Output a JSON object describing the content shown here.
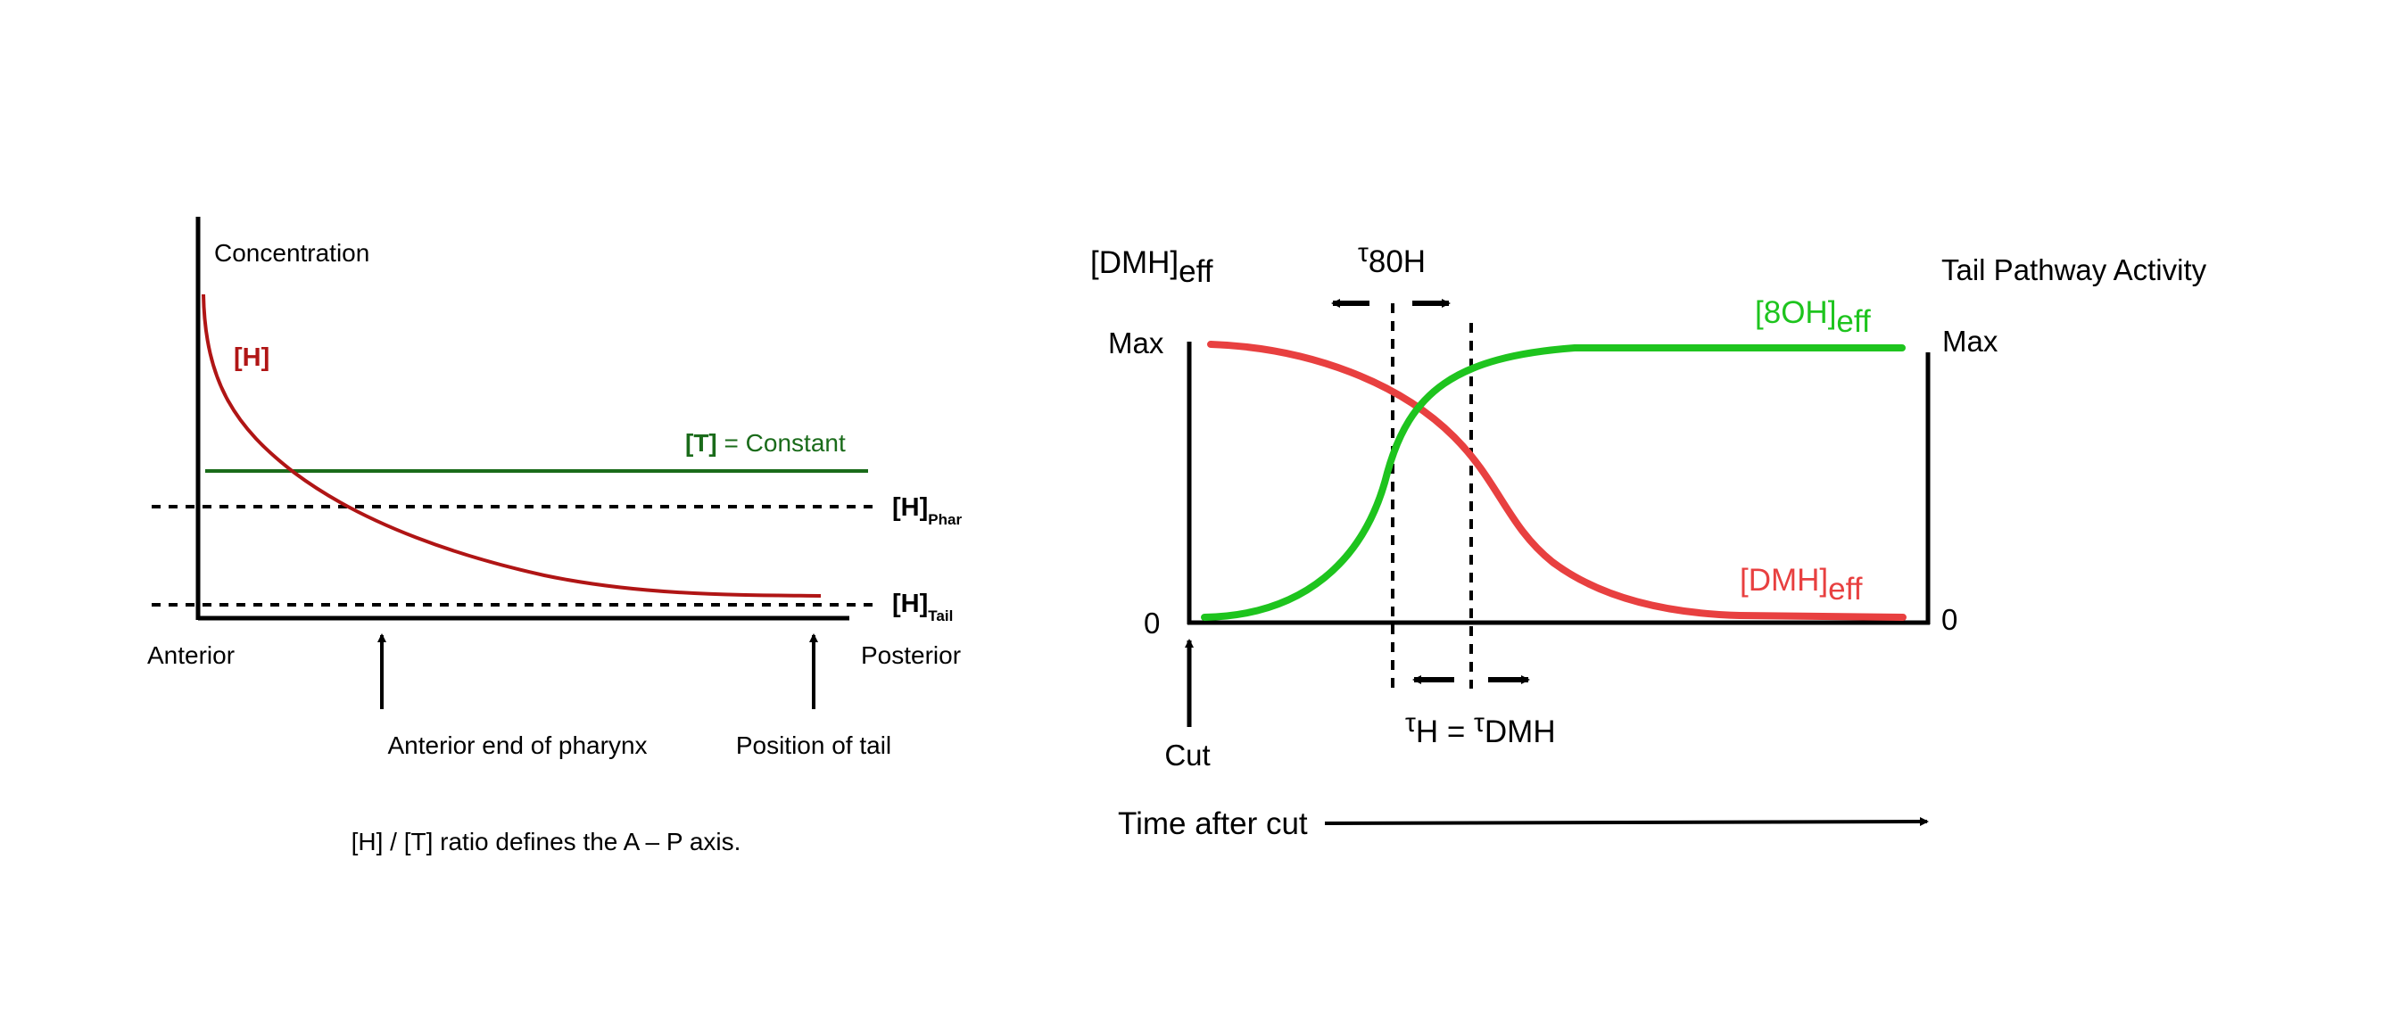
{
  "left_panel": {
    "y_axis_label": "Concentration",
    "h_label": "[H]",
    "t_label_bold": "[T]",
    "t_label_rest": " = Constant",
    "h_phar_main": "[H]",
    "h_phar_sub": "Phar",
    "h_tail_main": "[H]",
    "h_tail_sub": "Tail",
    "anterior": "Anterior",
    "posterior": "Posterior",
    "pharynx_label": "Anterior end of pharynx",
    "tail_label": "Position of tail",
    "caption": "[H] / [T] ratio defines the A – P axis."
  },
  "right_panel": {
    "left_axis_title_main": "[DMH]",
    "left_axis_title_sub": "eff",
    "right_axis_title": "Tail Pathway Activity",
    "max_left": "Max",
    "max_right": "Max",
    "zero_left": "0",
    "zero_right": "0",
    "tau80h_sup": "τ",
    "tau80h_rest": "80H",
    "oh_label_main": "[8OH]",
    "oh_label_sub": "eff",
    "dmh_label_main": "[DMH]",
    "dmh_label_sub": "eff",
    "tau_h_sup1": "τ",
    "tau_h_mid": "H = ",
    "tau_h_sup2": "τ",
    "tau_h_end": "DMH",
    "cut_label": "Cut",
    "time_label": "Time after cut"
  },
  "colors": {
    "h_curve": "#b01515",
    "t_line": "#1a6b1a",
    "dmh_curve": "#e84040",
    "oh_curve": "#1ec41e",
    "axis": "#000000"
  }
}
